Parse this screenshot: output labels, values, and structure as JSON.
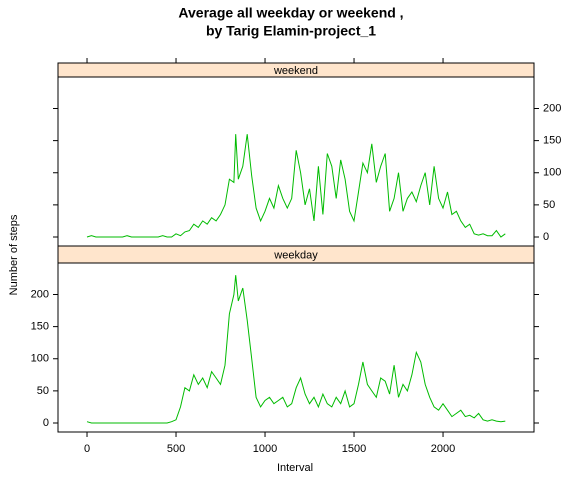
{
  "chart_data": {
    "type": "line",
    "title": [
      "Average all weekday or weekend ,",
      "by Tarig Elamin-project_1"
    ],
    "xlabel": "Interval",
    "ylabel": "Number of steps",
    "x": [
      0,
      25,
      50,
      75,
      100,
      125,
      150,
      175,
      200,
      225,
      250,
      275,
      300,
      325,
      350,
      375,
      400,
      425,
      450,
      475,
      500,
      525,
      550,
      575,
      600,
      625,
      650,
      675,
      700,
      725,
      750,
      775,
      800,
      825,
      835,
      850,
      875,
      900,
      925,
      950,
      975,
      1000,
      1025,
      1050,
      1075,
      1100,
      1125,
      1150,
      1175,
      1200,
      1225,
      1250,
      1275,
      1300,
      1325,
      1350,
      1375,
      1400,
      1425,
      1450,
      1475,
      1500,
      1525,
      1550,
      1575,
      1600,
      1625,
      1650,
      1675,
      1700,
      1725,
      1750,
      1775,
      1800,
      1825,
      1850,
      1875,
      1900,
      1925,
      1950,
      1975,
      2000,
      2025,
      2050,
      2075,
      2100,
      2125,
      2150,
      2175,
      2200,
      2225,
      2250,
      2275,
      2300,
      2325,
      2350
    ],
    "xlim": [
      -163,
      2511
    ],
    "xticks": [
      0,
      500,
      1000,
      1500,
      2000
    ],
    "ylim": [
      -14,
      249
    ],
    "yticks": [
      0,
      50,
      100,
      150,
      200
    ],
    "strip_color": "#ffe5cc",
    "series": [
      {
        "name": "weekend",
        "color": "#00bb00",
        "values": [
          0,
          2,
          0,
          0,
          0,
          0,
          0,
          0,
          0,
          2,
          0,
          0,
          0,
          0,
          0,
          0,
          0,
          2,
          0,
          0,
          5,
          2,
          8,
          10,
          20,
          15,
          25,
          20,
          30,
          25,
          35,
          50,
          90,
          85,
          160,
          90,
          110,
          160,
          95,
          45,
          25,
          40,
          60,
          45,
          80,
          60,
          45,
          60,
          135,
          100,
          50,
          75,
          25,
          110,
          35,
          130,
          110,
          60,
          120,
          90,
          40,
          25,
          70,
          115,
          100,
          145,
          85,
          110,
          130,
          40,
          60,
          100,
          40,
          60,
          70,
          55,
          80,
          100,
          50,
          110,
          60,
          45,
          70,
          35,
          40,
          25,
          15,
          20,
          5,
          3,
          5,
          2,
          2,
          10,
          0,
          5
        ]
      },
      {
        "name": "weekday",
        "color": "#00bb00",
        "values": [
          2,
          0,
          0,
          0,
          0,
          0,
          0,
          0,
          0,
          0,
          0,
          0,
          0,
          0,
          0,
          0,
          0,
          0,
          0,
          2,
          5,
          25,
          55,
          50,
          75,
          60,
          70,
          55,
          80,
          70,
          60,
          90,
          170,
          200,
          230,
          190,
          210,
          160,
          100,
          40,
          25,
          35,
          40,
          30,
          35,
          40,
          25,
          30,
          55,
          70,
          45,
          30,
          40,
          25,
          45,
          30,
          25,
          40,
          30,
          50,
          25,
          30,
          60,
          95,
          60,
          50,
          40,
          70,
          65,
          45,
          90,
          40,
          60,
          50,
          75,
          110,
          95,
          60,
          40,
          25,
          20,
          30,
          20,
          10,
          15,
          20,
          10,
          12,
          8,
          15,
          5,
          3,
          5,
          3,
          2,
          3
        ]
      }
    ]
  }
}
